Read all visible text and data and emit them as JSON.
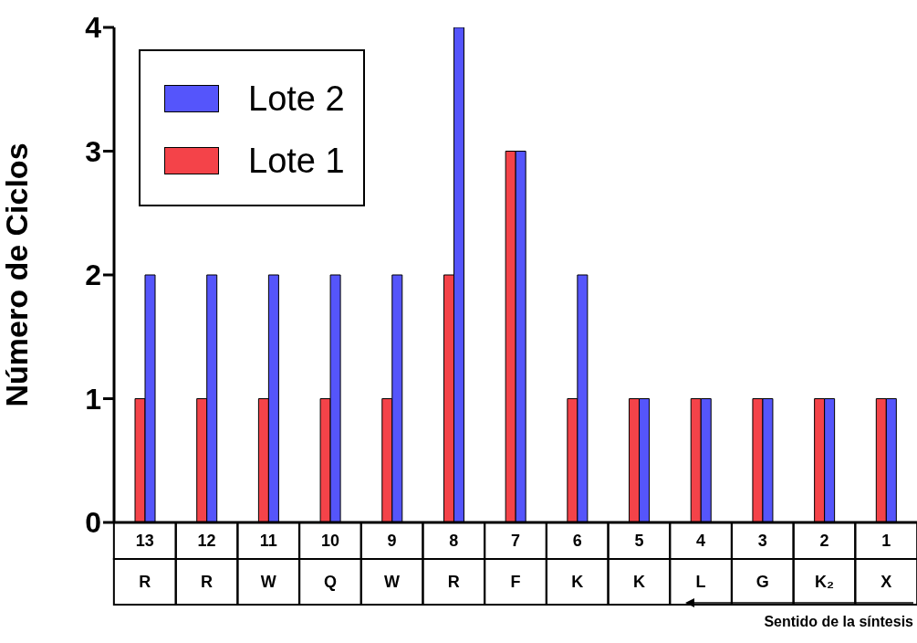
{
  "chart_data": {
    "type": "bar",
    "ylabel": "Número de Ciclos",
    "categories": [
      "13\nR",
      "12\nR",
      "11\nW",
      "10\nQ",
      "9\nW",
      "8\nR",
      "7\nF",
      "6\nK",
      "5\nK",
      "4\nL",
      "3\nG",
      "2\nK₂",
      "1\nX"
    ],
    "series": [
      {
        "name": "Lote 1",
        "color": "#f44349",
        "values": [
          1,
          1,
          1,
          1,
          1,
          2,
          3,
          1,
          1,
          1,
          1,
          1,
          1
        ]
      },
      {
        "name": "Lote 2",
        "color": "#5555fb",
        "values": [
          2,
          2,
          2,
          2,
          2,
          4,
          3,
          2,
          1,
          1,
          1,
          1,
          1
        ]
      }
    ],
    "ylim": [
      0,
      4
    ],
    "yticks": [
      0,
      1,
      2,
      3,
      4
    ],
    "grid": false,
    "legend": "top left",
    "annotations": [
      "Sentido de la síntesis"
    ]
  }
}
